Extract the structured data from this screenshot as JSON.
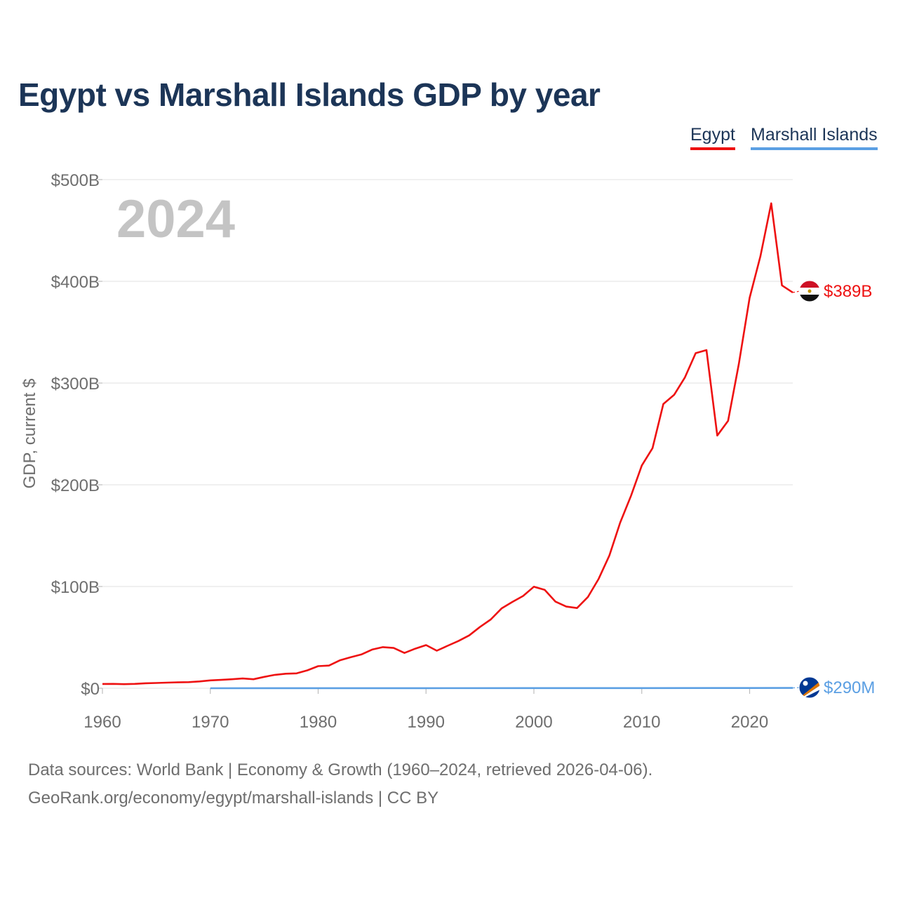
{
  "title": "Egypt vs Marshall Islands GDP by year",
  "year_watermark": "2024",
  "legend": [
    {
      "label": "Egypt",
      "color": "#ee1111"
    },
    {
      "label": "Marshall Islands",
      "color": "#5b9fe3"
    }
  ],
  "source_line1": "Data sources: World Bank | Economy & Growth (1960–2024, retrieved 2026-04-06).",
  "source_line2": "GeoRank.org/economy/egypt/marshall-islands | CC BY",
  "chart_data": {
    "type": "line",
    "title": "Egypt vs Marshall Islands GDP by year",
    "xlabel": "",
    "ylabel": "GDP, current $",
    "xlim": [
      1960,
      2024
    ],
    "ylim": [
      0,
      500
    ],
    "units": "billions USD",
    "x_ticks": [
      1960,
      1970,
      1980,
      1990,
      2000,
      2010,
      2020
    ],
    "x_tick_labels": [
      "1960",
      "1970",
      "1980",
      "1990",
      "2000",
      "2010",
      "2020"
    ],
    "y_ticks": [
      0,
      100,
      200,
      300,
      400,
      500
    ],
    "y_tick_labels": [
      "$0",
      "$100B",
      "$200B",
      "$300B",
      "$400B",
      "$500B"
    ],
    "grid": true,
    "series": [
      {
        "name": "Egypt",
        "color": "#ee1111",
        "end_label": "$389B",
        "x": [
          1960,
          1961,
          1962,
          1963,
          1964,
          1965,
          1966,
          1967,
          1968,
          1969,
          1970,
          1971,
          1972,
          1973,
          1974,
          1975,
          1976,
          1977,
          1978,
          1979,
          1980,
          1981,
          1982,
          1983,
          1984,
          1985,
          1986,
          1987,
          1988,
          1989,
          1990,
          1991,
          1992,
          1993,
          1994,
          1995,
          1996,
          1997,
          1998,
          1999,
          2000,
          2001,
          2002,
          2003,
          2004,
          2005,
          2006,
          2007,
          2008,
          2009,
          2010,
          2011,
          2012,
          2013,
          2014,
          2015,
          2016,
          2017,
          2018,
          2019,
          2020,
          2021,
          2022,
          2023,
          2024
        ],
        "values": [
          4.2,
          4.3,
          4.0,
          4.3,
          4.9,
          5.2,
          5.5,
          5.8,
          6.0,
          6.7,
          7.7,
          8.2,
          8.8,
          9.6,
          8.8,
          11.2,
          13.2,
          14.3,
          14.6,
          17.6,
          21.7,
          22.3,
          27.4,
          30.4,
          33.2,
          38.0,
          40.4,
          39.6,
          34.7,
          38.9,
          42.4,
          36.9,
          41.7,
          46.4,
          51.9,
          60.2,
          67.6,
          78.4,
          84.8,
          90.7,
          99.8,
          96.7,
          85.1,
          80.3,
          78.8,
          89.6,
          107.5,
          130.5,
          162.8,
          189.1,
          218.9,
          236.0,
          279.4,
          288.4,
          305.6,
          329.4,
          332.4,
          248.4,
          262.8,
          318.7,
          383.8,
          424.7,
          476.7,
          396.0,
          389.0
        ]
      },
      {
        "name": "Marshall Islands",
        "color": "#5b9fe3",
        "end_label": "$290M",
        "x": [
          1970,
          1980,
          1990,
          2000,
          2010,
          2020,
          2024
        ],
        "values": [
          0.03,
          0.05,
          0.08,
          0.11,
          0.16,
          0.24,
          0.29
        ]
      }
    ]
  }
}
